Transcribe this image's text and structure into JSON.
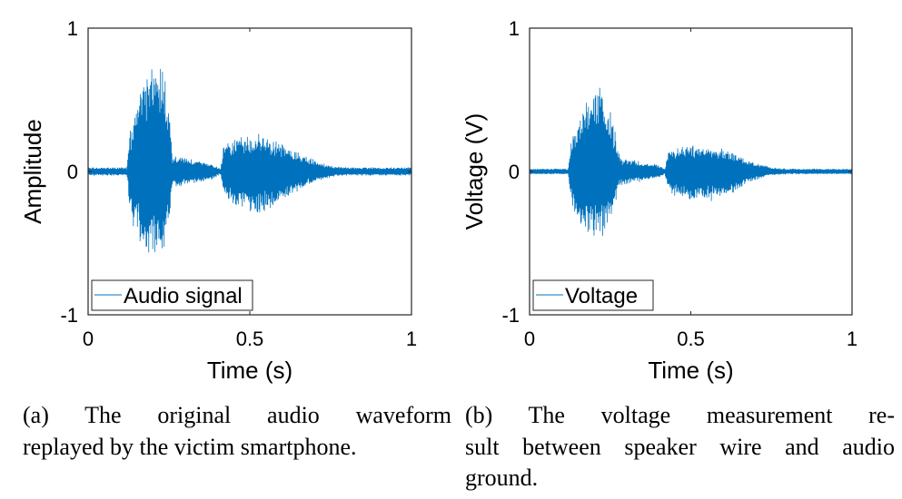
{
  "chart_data": [
    {
      "type": "line",
      "xlabel": "Time (s)",
      "ylabel": "Amplitude",
      "xlim": [
        0,
        1
      ],
      "ylim": [
        -1,
        1
      ],
      "xticks": [
        "0",
        "0.5",
        "1"
      ],
      "yticks": [
        "1",
        "0",
        "-1"
      ],
      "legend": {
        "label": "Audio signal",
        "placement": "bottom-left"
      },
      "color": "#0072BD",
      "series": [
        {
          "name": "Audio signal",
          "envelope_t": [
            0,
            0.12,
            0.13,
            0.16,
            0.2,
            0.23,
            0.25,
            0.26,
            0.3,
            0.38,
            0.41,
            0.42,
            0.47,
            0.53,
            0.6,
            0.68,
            0.75,
            0.8,
            1
          ],
          "envelope_upper": [
            0.03,
            0.03,
            0.3,
            0.6,
            0.75,
            0.8,
            0.5,
            0.12,
            0.1,
            0.06,
            0.02,
            0.2,
            0.25,
            0.27,
            0.2,
            0.1,
            0.04,
            0.03,
            0.03
          ],
          "envelope_lower": [
            -0.03,
            -0.03,
            -0.3,
            -0.55,
            -0.63,
            -0.6,
            -0.4,
            -0.12,
            -0.1,
            -0.06,
            -0.02,
            -0.2,
            -0.28,
            -0.32,
            -0.22,
            -0.1,
            -0.04,
            -0.03,
            -0.03
          ]
        }
      ]
    },
    {
      "type": "line",
      "xlabel": "Time (s)",
      "ylabel": "Voltage (V)",
      "xlim": [
        0,
        1
      ],
      "ylim": [
        -1,
        1
      ],
      "xticks": [
        "0",
        "0.5",
        "1"
      ],
      "yticks": [
        "1",
        "0",
        "-1"
      ],
      "legend": {
        "label": "Voltage",
        "placement": "bottom-left"
      },
      "color": "#0072BD",
      "series": [
        {
          "name": "Voltage",
          "envelope_t": [
            0,
            0.12,
            0.13,
            0.16,
            0.2,
            0.23,
            0.26,
            0.28,
            0.33,
            0.4,
            0.42,
            0.43,
            0.48,
            0.55,
            0.62,
            0.68,
            0.75,
            0.8,
            1
          ],
          "envelope_upper": [
            0.02,
            0.02,
            0.25,
            0.45,
            0.58,
            0.6,
            0.35,
            0.1,
            0.08,
            0.05,
            0.02,
            0.15,
            0.18,
            0.2,
            0.15,
            0.08,
            0.03,
            0.02,
            0.02
          ],
          "envelope_lower": [
            -0.02,
            -0.02,
            -0.25,
            -0.42,
            -0.48,
            -0.45,
            -0.3,
            -0.1,
            -0.08,
            -0.05,
            -0.02,
            -0.15,
            -0.2,
            -0.22,
            -0.17,
            -0.08,
            -0.03,
            -0.02,
            -0.02
          ]
        }
      ]
    }
  ],
  "captions": [
    {
      "lines": [
        "(a) The original audio waveform",
        "replayed by the victim smartphone."
      ]
    },
    {
      "lines": [
        "(b) The voltage measurement re-",
        "sult between speaker wire and audio",
        "ground."
      ]
    }
  ]
}
